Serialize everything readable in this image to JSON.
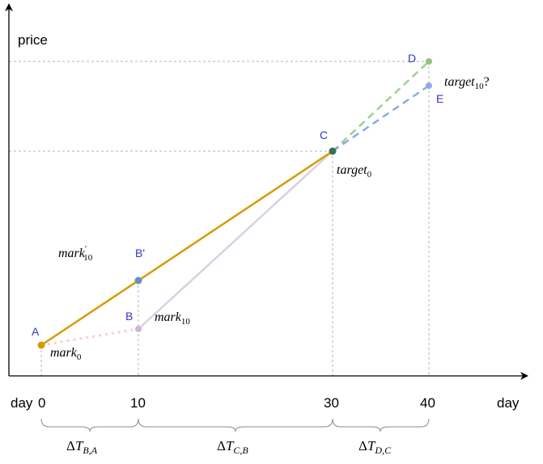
{
  "axes": {
    "y_label": "price",
    "x_label": "day",
    "x_tick_prefix": "day",
    "x_ticks": [
      "0",
      "10",
      "30",
      "40"
    ]
  },
  "points": {
    "A": "A",
    "B": "B",
    "B_prime": "B'",
    "C": "C",
    "D": "D",
    "E": "E"
  },
  "annotations": {
    "mark0": {
      "base": "mark",
      "sub": "0",
      "prime": ""
    },
    "mark10": {
      "base": "mark",
      "sub": "10",
      "prime": ""
    },
    "mark10_prime": {
      "base": "mark",
      "sub": "10",
      "prime": "′"
    },
    "target0": {
      "base": "target",
      "sub": "0",
      "suffix": ""
    },
    "target10": {
      "base": "target",
      "sub": "10",
      "suffix": "?"
    }
  },
  "intervals": [
    {
      "delta": "Δ",
      "base": "T",
      "sub": "B,A"
    },
    {
      "delta": "Δ",
      "base": "T",
      "sub": "C,B"
    },
    {
      "delta": "Δ",
      "base": "T",
      "sub": "D,C"
    }
  ],
  "colors": {
    "axis": "#000000",
    "guide": "#b3b3b3",
    "point_label": "#3333cc",
    "gold_line": "#d79b00",
    "pink_dotted": "#f8cecc",
    "lavender_line": "#d9d0e3",
    "green_dashed": "#9fcf8f",
    "blue_dashed": "#8fa8e8",
    "point_A": "#d79b00",
    "point_B": "#c9b6d9",
    "point_B_prime": "#6c8ebf",
    "point_C": "#3d6b5a",
    "point_D": "#93c47d",
    "point_E": "#8fa8e8"
  }
}
